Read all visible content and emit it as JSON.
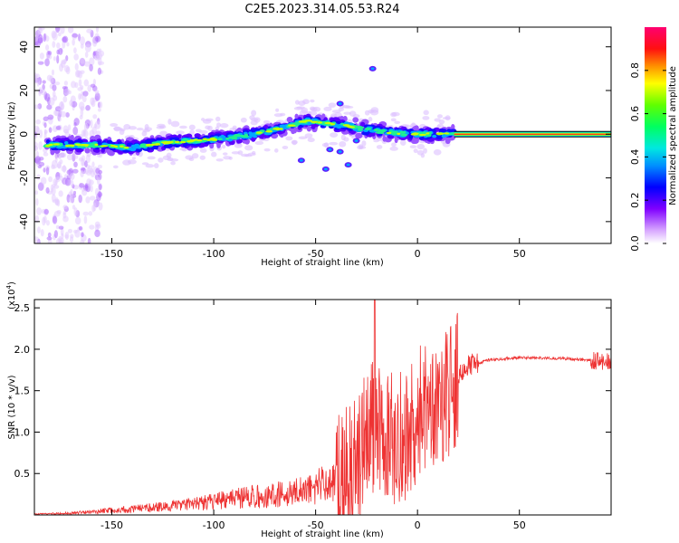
{
  "title": "C2E5.2023.314.05.53.R24",
  "chart_data": [
    {
      "type": "heatmap",
      "xlabel": "Height of straight line (km)",
      "ylabel": "Frequency (Hz)",
      "xlim": [
        -188,
        95
      ],
      "ylim": [
        -50,
        49
      ],
      "xticks": [
        -150,
        -100,
        -50,
        0,
        50
      ],
      "xtick_labels": [
        "-150",
        "-100",
        "-50",
        "0",
        "50"
      ],
      "yticks": [
        -40,
        -20,
        0,
        20,
        40
      ],
      "ytick_labels": [
        "-40",
        "-20",
        "0",
        "20",
        "40"
      ],
      "trace": {
        "x": [
          -185,
          -170,
          -155,
          -140,
          -125,
          -110,
          -95,
          -80,
          -65,
          -55,
          -45,
          -35,
          -25,
          -15,
          -5,
          5,
          15,
          20,
          95
        ],
        "y": [
          -5,
          -5,
          -5,
          -6,
          -4,
          -3,
          -2,
          0,
          3,
          6,
          5,
          4,
          2,
          1,
          0,
          0,
          0,
          0,
          0
        ]
      },
      "colorbar": {
        "label": "Normalized spectral amplitude",
        "ticks": [
          0.0,
          0.2,
          0.4,
          0.6,
          0.8
        ],
        "tick_labels": [
          "0.0",
          "0.2",
          "0.4",
          "0.6",
          "0.8"
        ],
        "colors": [
          "#ffffff",
          "#c070ff",
          "#8000ff",
          "#0000ff",
          "#00c8ff",
          "#00ff80",
          "#40ff00",
          "#ffff00",
          "#ff8000",
          "#ff0000",
          "#ff0080"
        ]
      }
    },
    {
      "type": "line",
      "xlabel": "Height of straight line (km)",
      "ylabel": "SNR (10 * v/v)",
      "exponent_label": "(x10",
      "exponent_value": "4",
      "exponent_close": ")",
      "xlim": [
        -188,
        95
      ],
      "ylim": [
        0,
        2.6
      ],
      "xticks": [
        -150,
        -100,
        -50,
        0,
        50
      ],
      "xtick_labels": [
        "-150",
        "-100",
        "-50",
        "0",
        "50"
      ],
      "yticks": [
        0.5,
        1.0,
        1.5,
        2.0,
        2.5
      ],
      "ytick_labels": [
        "0.5",
        "1.0",
        "1.5",
        "2.0",
        "2.5"
      ],
      "color": "#ee3333",
      "envelope": {
        "x": [
          -188,
          -170,
          -150,
          -130,
          -110,
          -100,
          -90,
          -80,
          -70,
          -60,
          -50,
          -45,
          -40,
          -35,
          -30,
          -25,
          -21,
          -18,
          -15,
          -10,
          -5,
          0,
          5,
          10,
          15,
          18,
          20,
          25,
          35,
          50,
          70,
          90,
          95
        ],
        "y": [
          0.01,
          0.02,
          0.05,
          0.08,
          0.12,
          0.15,
          0.18,
          0.2,
          0.22,
          0.25,
          0.3,
          0.35,
          0.4,
          0.5,
          0.7,
          0.9,
          1.1,
          1.0,
          0.95,
          0.9,
          1.0,
          1.2,
          1.35,
          1.4,
          1.5,
          1.6,
          1.7,
          1.8,
          1.87,
          1.9,
          1.89,
          1.86,
          1.85
        ]
      },
      "peak": {
        "x": -21,
        "y": 2.6
      }
    }
  ]
}
